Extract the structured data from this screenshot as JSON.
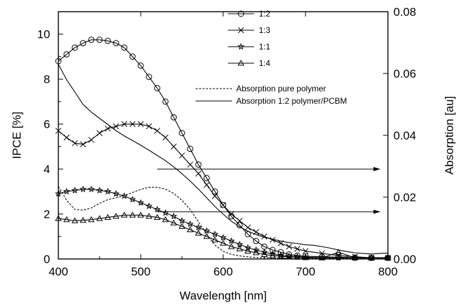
{
  "chart_data": {
    "type": "line",
    "xlabel": "Wavelength [nm]",
    "ylabel": "IPCE [%]",
    "y2label": "Absorption [au]",
    "xlim": [
      400,
      800
    ],
    "ylim": [
      0,
      11
    ],
    "y2lim": [
      0,
      0.08
    ],
    "x_ticks": [
      400,
      500,
      600,
      700,
      800
    ],
    "y_ticks": [
      0,
      2,
      4,
      6,
      8,
      10
    ],
    "y2_ticks": [
      "0.00",
      "0.02",
      "0.04",
      "0.06",
      "0.08"
    ],
    "grid": false,
    "legend_position": "top-right",
    "series": [
      {
        "name": "1:2",
        "marker": "circle",
        "axis": "left",
        "x": [
          400,
          410,
          420,
          430,
          440,
          450,
          460,
          470,
          480,
          490,
          500,
          510,
          520,
          530,
          540,
          550,
          560,
          570,
          580,
          590,
          600,
          610,
          620,
          630,
          640,
          650,
          660,
          670,
          680,
          690,
          700,
          720,
          740,
          760,
          780,
          800
        ],
        "y": [
          8.8,
          9.1,
          9.4,
          9.6,
          9.75,
          9.75,
          9.7,
          9.6,
          9.4,
          9.0,
          8.6,
          8.1,
          7.6,
          7.0,
          6.3,
          5.6,
          4.9,
          4.2,
          3.6,
          3.0,
          2.4,
          1.9,
          1.5,
          1.1,
          0.8,
          0.55,
          0.4,
          0.3,
          0.2,
          0.15,
          0.12,
          0.1,
          0.08,
          0.06,
          0.05,
          0.05
        ]
      },
      {
        "name": "1:3",
        "marker": "cross",
        "axis": "left",
        "x": [
          400,
          410,
          420,
          430,
          440,
          450,
          460,
          470,
          480,
          490,
          500,
          510,
          520,
          530,
          540,
          550,
          560,
          570,
          580,
          590,
          600,
          610,
          620,
          630,
          640,
          650,
          660,
          670,
          680,
          690,
          700,
          720,
          740,
          760,
          780,
          800
        ],
        "y": [
          5.7,
          5.4,
          5.15,
          5.1,
          5.3,
          5.6,
          5.8,
          5.9,
          6.0,
          6.0,
          6.0,
          5.9,
          5.7,
          5.4,
          5.0,
          4.6,
          4.2,
          3.8,
          3.3,
          2.8,
          2.4,
          2.0,
          1.7,
          1.4,
          1.2,
          1.0,
          0.85,
          0.7,
          0.55,
          0.45,
          0.35,
          0.25,
          0.15,
          0.1,
          0.05,
          0.05
        ]
      },
      {
        "name": "1:1",
        "marker": "star",
        "axis": "left",
        "x": [
          400,
          410,
          420,
          430,
          440,
          450,
          460,
          470,
          480,
          490,
          500,
          510,
          520,
          530,
          540,
          550,
          560,
          570,
          580,
          590,
          600,
          610,
          620,
          630,
          640,
          650,
          660,
          670,
          680,
          690,
          700,
          720,
          740,
          760,
          780,
          800
        ],
        "y": [
          2.9,
          3.0,
          3.05,
          3.1,
          3.1,
          3.05,
          3.0,
          2.9,
          2.8,
          2.65,
          2.5,
          2.35,
          2.2,
          2.05,
          1.9,
          1.7,
          1.55,
          1.4,
          1.25,
          1.1,
          0.95,
          0.8,
          0.65,
          0.5,
          0.4,
          0.3,
          0.22,
          0.16,
          0.12,
          0.1,
          0.08,
          0.06,
          0.05,
          0.05,
          0.05,
          0.05
        ]
      },
      {
        "name": "1:4",
        "marker": "triangle",
        "axis": "left",
        "x": [
          400,
          410,
          420,
          430,
          440,
          450,
          460,
          470,
          480,
          490,
          500,
          510,
          520,
          530,
          540,
          550,
          560,
          570,
          580,
          590,
          600,
          610,
          620,
          630,
          640,
          650,
          660,
          670,
          680,
          690,
          700,
          720,
          740,
          760,
          780,
          800
        ],
        "y": [
          1.8,
          1.75,
          1.7,
          1.72,
          1.75,
          1.8,
          1.85,
          1.9,
          1.95,
          1.95,
          1.95,
          1.9,
          1.85,
          1.75,
          1.6,
          1.45,
          1.3,
          1.15,
          1.0,
          0.85,
          0.7,
          0.55,
          0.45,
          0.35,
          0.28,
          0.2,
          0.15,
          0.12,
          0.1,
          0.08,
          0.06,
          0.05,
          0.3,
          0.05,
          0.05,
          0.05
        ]
      },
      {
        "name": "Absorption pure polymer",
        "style": "dashed",
        "axis": "right",
        "x": [
          400,
          410,
          420,
          430,
          440,
          450,
          460,
          470,
          480,
          490,
          500,
          510,
          520,
          530,
          540,
          550,
          560,
          570,
          580,
          590,
          600,
          610,
          620,
          630,
          640,
          650,
          660,
          680,
          700,
          720,
          740,
          760,
          780,
          800
        ],
        "y": [
          0.0235,
          0.019,
          0.016,
          0.0158,
          0.0165,
          0.018,
          0.0192,
          0.0198,
          0.0205,
          0.0215,
          0.0225,
          0.0232,
          0.0232,
          0.0226,
          0.0212,
          0.019,
          0.016,
          0.012,
          0.008,
          0.0045,
          0.0025,
          0.0015,
          0.001,
          0.0007,
          0.0005,
          0.0004,
          0.0003,
          0.0003,
          0.0002,
          0.0002,
          0.0002,
          0.0002,
          0.0002,
          0.0002
        ]
      },
      {
        "name": "Absorption 1:2 polymer/PCBM",
        "style": "solid",
        "axis": "right",
        "x": [
          400,
          410,
          420,
          430,
          440,
          450,
          460,
          470,
          480,
          490,
          500,
          510,
          520,
          530,
          540,
          550,
          560,
          570,
          580,
          590,
          600,
          610,
          620,
          630,
          640,
          650,
          660,
          670,
          680,
          690,
          700,
          710,
          720,
          730,
          740,
          750,
          760,
          770,
          780,
          790,
          800
        ],
        "y": [
          0.063,
          0.058,
          0.054,
          0.05,
          0.0475,
          0.0455,
          0.0435,
          0.0415,
          0.0398,
          0.0383,
          0.0368,
          0.0352,
          0.0335,
          0.0318,
          0.0298,
          0.0276,
          0.0252,
          0.0226,
          0.0198,
          0.017,
          0.0145,
          0.0122,
          0.0104,
          0.009,
          0.0079,
          0.007,
          0.0064,
          0.0058,
          0.0053,
          0.005,
          0.0046,
          0.0044,
          0.004,
          0.0035,
          0.0029,
          0.0024,
          0.002,
          0.0018,
          0.0016,
          0.0018,
          0.0019
        ]
      }
    ],
    "annotations": [
      {
        "type": "arrow",
        "from": [
          520,
          4.0
        ],
        "to": [
          790,
          4.0
        ],
        "axis": "left"
      },
      {
        "type": "arrow",
        "from": [
          520,
          2.1
        ],
        "to": [
          790,
          2.1
        ],
        "axis": "left"
      }
    ]
  }
}
